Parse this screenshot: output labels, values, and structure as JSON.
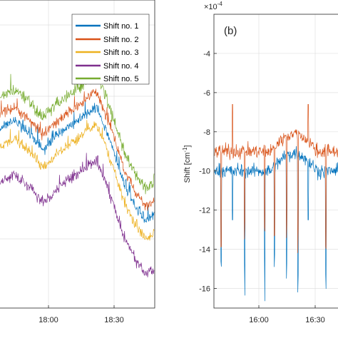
{
  "chart_data": [
    {
      "type": "line",
      "panel": "left",
      "x_ticks": [
        "18:00",
        "18:30"
      ],
      "series": [
        {
          "name": "Shift no. 1",
          "color": "#0072BD"
        },
        {
          "name": "Shift no. 2",
          "color": "#D95319"
        },
        {
          "name": "Shift no. 3",
          "color": "#EDB120"
        },
        {
          "name": "Shift no. 4",
          "color": "#7E2F8E"
        },
        {
          "name": "Shift no. 5",
          "color": "#77AC30"
        }
      ],
      "legend": "top-right",
      "grid": true
    },
    {
      "type": "line",
      "panel_label": "(b)",
      "ylabel": "Shift [cm",
      "ylabel_sup": "-1",
      "ylabel_end": "]",
      "multiplier": "×10",
      "multiplier_exp": "-4",
      "y_ticks": [
        "-4",
        "-6",
        "-8",
        "-10",
        "-12",
        "-14",
        "-16"
      ],
      "ylim": [
        -17,
        -2
      ],
      "x_ticks": [
        "16:00",
        "16:30"
      ],
      "series": [
        {
          "color": "#0072BD",
          "baseline": -10,
          "spike_min": -16.7
        },
        {
          "color": "#D95319",
          "baseline": -9,
          "spike_max": -6.6
        }
      ],
      "grid": true
    }
  ]
}
